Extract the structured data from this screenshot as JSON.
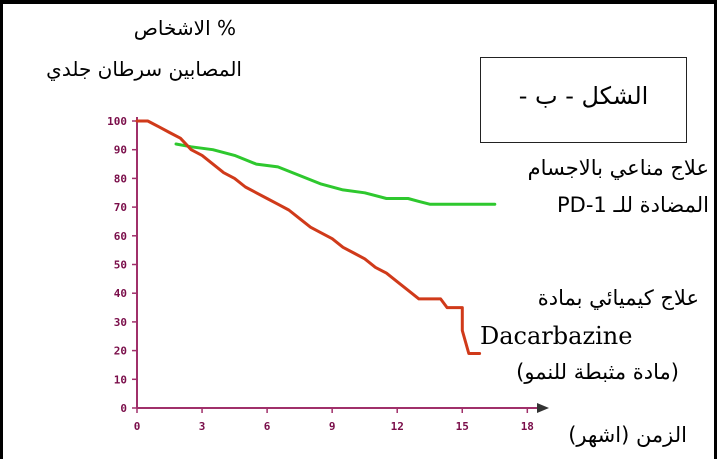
{
  "labels": {
    "y_axis_line1": "% الاشخاص",
    "y_axis_line2": "المصابين سرطان جلدي",
    "figure": "الشكل - ب -",
    "immuno_line1": "علاج مناعي بالاجسام",
    "immuno_line2": "المضادة للـ PD-1",
    "chemo_line1": "علاج كيميائي بمادة",
    "chemo_line2": "Dacarbazine",
    "chemo_line3": "(مادة مثبطة للنمو)",
    "x_axis": "الزمن (اشهر)"
  },
  "chart_data": {
    "type": "line",
    "xlabel": "الزمن (اشهر)",
    "ylabel": "% الاشخاص المصابين سرطان جلدي",
    "xlim": [
      0,
      19
    ],
    "ylim": [
      0,
      100
    ],
    "x_ticks": [
      "0",
      "3",
      "6",
      "9",
      "12",
      "15",
      "18"
    ],
    "y_ticks": [
      "0",
      "10",
      "20",
      "30",
      "40",
      "50",
      "60",
      "70",
      "80",
      "90",
      "100"
    ],
    "series": [
      {
        "name": "علاج مناعي بالاجسام المضادة للـ PD-1",
        "color": "#2ec82e",
        "points": [
          [
            1.8,
            92
          ],
          [
            2.5,
            91
          ],
          [
            3.5,
            90
          ],
          [
            4.5,
            88
          ],
          [
            5.5,
            85
          ],
          [
            6.5,
            84
          ],
          [
            7.5,
            81
          ],
          [
            8.5,
            78
          ],
          [
            9.5,
            76
          ],
          [
            10.5,
            75
          ],
          [
            11.5,
            73
          ],
          [
            12.5,
            73
          ],
          [
            13,
            72
          ],
          [
            13.5,
            71
          ],
          [
            14.5,
            71
          ],
          [
            15.5,
            71
          ],
          [
            16.5,
            71
          ]
        ]
      },
      {
        "name": "علاج كيميائي بمادة Dacarbazine (مادة مثبطة للنمو)",
        "color": "#d03a1a",
        "points": [
          [
            0,
            100
          ],
          [
            0.5,
            100
          ],
          [
            1,
            98
          ],
          [
            1.5,
            96
          ],
          [
            2,
            94
          ],
          [
            2.5,
            90
          ],
          [
            3,
            88
          ],
          [
            3.5,
            85
          ],
          [
            4,
            82
          ],
          [
            4.5,
            80
          ],
          [
            5,
            77
          ],
          [
            5.5,
            75
          ],
          [
            6,
            73
          ],
          [
            6.5,
            71
          ],
          [
            7,
            69
          ],
          [
            7.5,
            66
          ],
          [
            8,
            63
          ],
          [
            8.5,
            61
          ],
          [
            9,
            59
          ],
          [
            9.5,
            56
          ],
          [
            10,
            54
          ],
          [
            10.5,
            52
          ],
          [
            11,
            49
          ],
          [
            11.5,
            47
          ],
          [
            12,
            44
          ],
          [
            12.5,
            41
          ],
          [
            13,
            38
          ],
          [
            14,
            38
          ],
          [
            14.3,
            35
          ],
          [
            15,
            35
          ],
          [
            15,
            27
          ],
          [
            15.3,
            19
          ],
          [
            15.8,
            19
          ]
        ]
      }
    ]
  }
}
